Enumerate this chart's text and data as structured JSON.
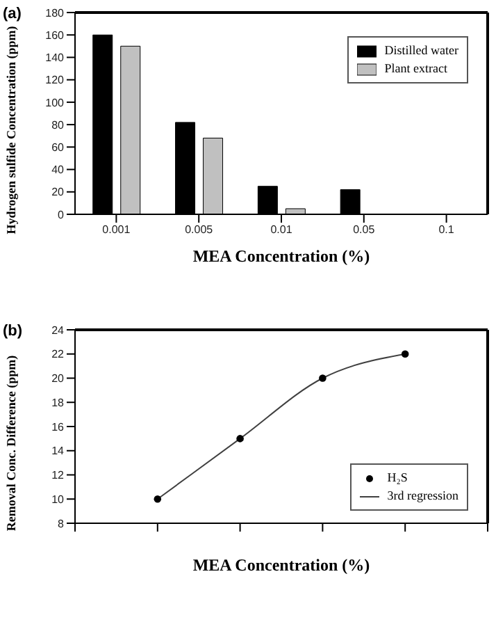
{
  "chart_data": [
    {
      "type": "bar",
      "title": "(a)",
      "xlabel": "MEA Concentration (%)",
      "ylabel": "Hydrogen sulfide Concentration (ppm)",
      "categories": [
        "0.001",
        "0.005",
        "0.01",
        "0.05",
        "0.1"
      ],
      "series": [
        {
          "name": "Distilled water",
          "color": "#000000",
          "values": [
            160,
            82,
            25,
            22,
            null
          ]
        },
        {
          "name": "Plant extract",
          "color": "#c0c0c0",
          "values": [
            150,
            68,
            5,
            null,
            null
          ]
        }
      ],
      "ylim": [
        0,
        180
      ],
      "yticks": [
        0,
        20,
        40,
        60,
        80,
        100,
        120,
        140,
        160,
        180
      ],
      "legend": "top right"
    },
    {
      "type": "scatter",
      "title": "(b)",
      "xlabel": "MEA Concentration (%)",
      "ylabel": "Removal Conc. Difference (ppm)",
      "categories": [
        null,
        null,
        null,
        null,
        null,
        null
      ],
      "series": [
        {
          "name": "H₂S",
          "marker": "circle",
          "color": "#000000",
          "values": [
            null,
            10,
            15,
            20,
            22,
            null
          ]
        },
        {
          "name": "3rd regression",
          "type": "line",
          "color": "#404040",
          "values": [
            null,
            10,
            15,
            20,
            22,
            null
          ]
        }
      ],
      "ylim": [
        8,
        24
      ],
      "yticks": [
        8,
        10,
        12,
        14,
        16,
        18,
        20,
        22,
        24
      ],
      "legend": "right"
    }
  ]
}
